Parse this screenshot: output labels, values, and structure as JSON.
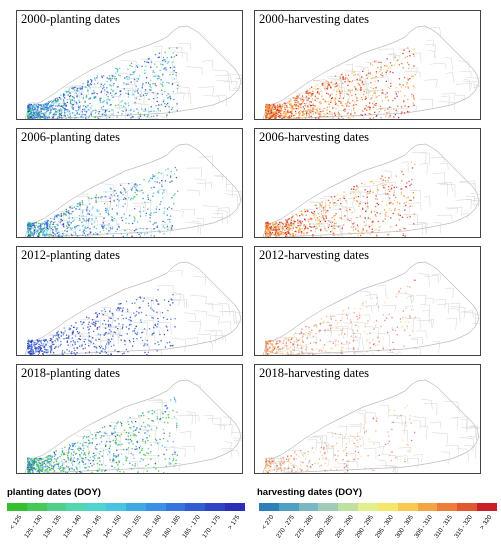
{
  "panels": [
    {
      "title": "2000-planting dates",
      "kind": "planting"
    },
    {
      "title": "2000-harvesting dates",
      "kind": "harvesting"
    },
    {
      "title": "2006-planting dates",
      "kind": "planting"
    },
    {
      "title": "2006-harvesting dates",
      "kind": "harvesting"
    },
    {
      "title": "2012-planting dates",
      "kind": "planting"
    },
    {
      "title": "2012-harvesting dates",
      "kind": "harvesting"
    },
    {
      "title": "2018-planting dates",
      "kind": "planting"
    },
    {
      "title": "2018-harvesting dates",
      "kind": "harvesting"
    }
  ],
  "legend": {
    "planting": {
      "title": "planting dates (DOY)",
      "labels": [
        "< 125",
        "125 - 130",
        "130 - 135",
        "135 - 140",
        "140 - 145",
        "145 - 150",
        "150 - 155",
        "155 - 160",
        "160 - 165",
        "165 - 170",
        "170 - 175",
        "> 175"
      ],
      "colors": [
        "#35c12f",
        "#46c95a",
        "#4ed08a",
        "#52d6b0",
        "#4fd3cf",
        "#48c3e0",
        "#3fa9e6",
        "#3b8fe4",
        "#3775de",
        "#335cd4",
        "#2e44c7",
        "#2a2fb5"
      ]
    },
    "harvesting": {
      "title": "harvesting dates (DOY)",
      "labels": [
        "< 270",
        "270 - 275",
        "275 - 280",
        "280 - 285",
        "285 - 290",
        "290 - 295",
        "295 - 300",
        "300 - 305",
        "305 - 310",
        "310 - 315",
        "315 - 320",
        "> 320"
      ],
      "colors": [
        "#2c7fb8",
        "#4f9fc2",
        "#7ab6c4",
        "#9fcbb8",
        "#bfe0a0",
        "#e2ef8a",
        "#f6e76a",
        "#f9c94f",
        "#f5a443",
        "#ee7d3b",
        "#e25531",
        "#c81f26"
      ]
    }
  }
}
